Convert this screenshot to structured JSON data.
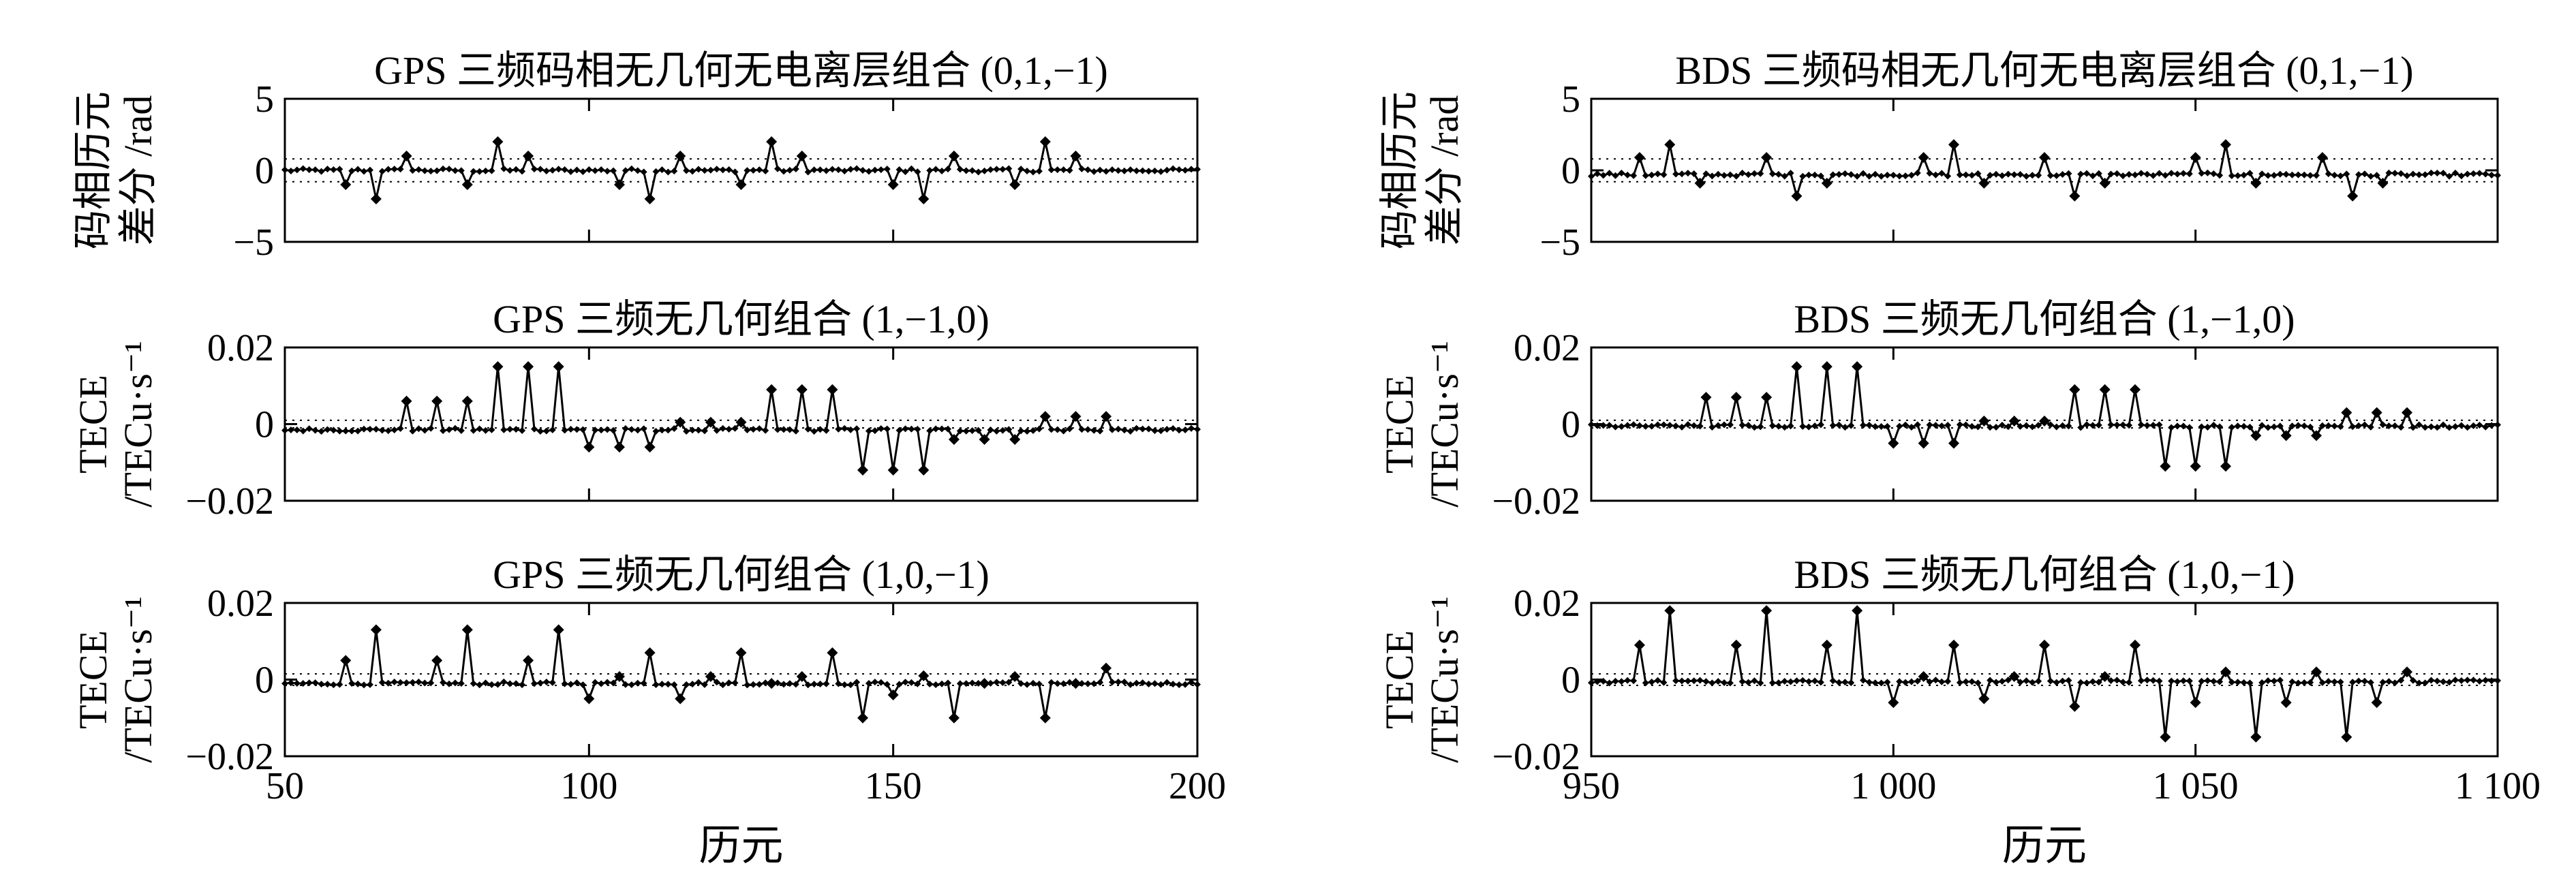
{
  "columns": [
    {
      "system": "GPS",
      "xlabel": "历元",
      "xlim": [
        50,
        200
      ],
      "xticks": [
        50,
        100,
        150,
        200
      ],
      "xtick_labels": [
        "50",
        "100",
        "150",
        "200"
      ]
    },
    {
      "system": "BDS",
      "xlabel": "历元",
      "xlim": [
        950,
        1100
      ],
      "xticks": [
        950,
        1000,
        1050,
        1100
      ],
      "xtick_labels": [
        "950",
        "1 000",
        "1 050",
        "1 100"
      ]
    }
  ],
  "row_ylabels": [
    [
      "码相历元",
      "差分 /rad"
    ],
    [
      "TECE",
      "/TECu·s⁻¹"
    ],
    [
      "TECE",
      "/TECu·s⁻¹"
    ]
  ],
  "chart_data": [
    {
      "type": "line",
      "id": "gps-code-phase",
      "title": "GPS 三频码相无几何无电离层组合 (0,1,−1)",
      "xlabel": "",
      "ylabel": "码相历元差分 /rad",
      "xlim": [
        50,
        200
      ],
      "ylim": [
        -5,
        5
      ],
      "yticks": [
        5,
        0,
        -5
      ],
      "ytick_labels": [
        "5",
        "0",
        "−5"
      ],
      "threshold": 0.8,
      "baseline": 0,
      "noise": 0.12,
      "spikes": [
        {
          "x": 60,
          "y": -1.0
        },
        {
          "x": 65,
          "y": -2.0
        },
        {
          "x": 70,
          "y": 1.0
        },
        {
          "x": 80,
          "y": -1.0
        },
        {
          "x": 85,
          "y": 2.0
        },
        {
          "x": 90,
          "y": 1.0
        },
        {
          "x": 105,
          "y": -1.0
        },
        {
          "x": 110,
          "y": -2.0
        },
        {
          "x": 115,
          "y": 1.0
        },
        {
          "x": 125,
          "y": -1.0
        },
        {
          "x": 130,
          "y": 2.0
        },
        {
          "x": 135,
          "y": 1.0
        },
        {
          "x": 150,
          "y": -1.0
        },
        {
          "x": 155,
          "y": -2.0
        },
        {
          "x": 160,
          "y": 1.0
        },
        {
          "x": 170,
          "y": -1.0
        },
        {
          "x": 175,
          "y": 2.0
        },
        {
          "x": 180,
          "y": 1.0
        }
      ],
      "grid": false
    },
    {
      "type": "line",
      "id": "gps-tece-110",
      "title": "GPS 三频无几何组合 (1,−1,0)",
      "xlabel": "",
      "ylabel": "TECE /TECu·s⁻¹",
      "xlim": [
        50,
        200
      ],
      "ylim": [
        -0.02,
        0.02
      ],
      "yticks": [
        0.02,
        0,
        -0.02
      ],
      "ytick_labels": [
        "0.02",
        "0",
        "−0.02"
      ],
      "threshold": 0.001,
      "baseline": -0.0015,
      "noise": 0.0004,
      "spikes": [
        {
          "x": 70,
          "y": 0.006
        },
        {
          "x": 75,
          "y": 0.006
        },
        {
          "x": 80,
          "y": 0.006
        },
        {
          "x": 85,
          "y": 0.015
        },
        {
          "x": 90,
          "y": 0.015
        },
        {
          "x": 95,
          "y": 0.015
        },
        {
          "x": 100,
          "y": -0.006
        },
        {
          "x": 105,
          "y": -0.006
        },
        {
          "x": 110,
          "y": -0.006
        },
        {
          "x": 115,
          "y": 0.0005
        },
        {
          "x": 120,
          "y": 0.0005
        },
        {
          "x": 125,
          "y": 0.0005
        },
        {
          "x": 130,
          "y": 0.009
        },
        {
          "x": 135,
          "y": 0.009
        },
        {
          "x": 140,
          "y": 0.009
        },
        {
          "x": 145,
          "y": -0.012
        },
        {
          "x": 150,
          "y": -0.012
        },
        {
          "x": 155,
          "y": -0.012
        },
        {
          "x": 160,
          "y": -0.004
        },
        {
          "x": 165,
          "y": -0.004
        },
        {
          "x": 170,
          "y": -0.004
        },
        {
          "x": 175,
          "y": 0.002
        },
        {
          "x": 180,
          "y": 0.002
        },
        {
          "x": 185,
          "y": 0.002
        }
      ],
      "grid": false
    },
    {
      "type": "line",
      "id": "gps-tece-101",
      "title": "GPS 三频无几何组合 (1,0,−1)",
      "xlabel": "历元",
      "ylabel": "TECE /TECu·s⁻¹",
      "xlim": [
        50,
        200
      ],
      "ylim": [
        -0.02,
        0.02
      ],
      "yticks": [
        0.02,
        0,
        -0.02
      ],
      "ytick_labels": [
        "0.02",
        "0",
        "−0.02"
      ],
      "threshold": 0.0015,
      "baseline": -0.001,
      "noise": 0.0004,
      "spikes": [
        {
          "x": 60,
          "y": 0.005
        },
        {
          "x": 65,
          "y": 0.013
        },
        {
          "x": 75,
          "y": 0.005
        },
        {
          "x": 80,
          "y": 0.013
        },
        {
          "x": 90,
          "y": 0.005
        },
        {
          "x": 95,
          "y": 0.013
        },
        {
          "x": 100,
          "y": -0.005
        },
        {
          "x": 105,
          "y": 0.0008
        },
        {
          "x": 110,
          "y": 0.007
        },
        {
          "x": 115,
          "y": -0.005
        },
        {
          "x": 120,
          "y": 0.0008
        },
        {
          "x": 125,
          "y": 0.007
        },
        {
          "x": 130,
          "y": -0.001
        },
        {
          "x": 135,
          "y": 0.0008
        },
        {
          "x": 140,
          "y": 0.007
        },
        {
          "x": 145,
          "y": -0.01
        },
        {
          "x": 150,
          "y": -0.004
        },
        {
          "x": 155,
          "y": 0.001
        },
        {
          "x": 160,
          "y": -0.01
        },
        {
          "x": 165,
          "y": -0.001
        },
        {
          "x": 170,
          "y": 0.0008
        },
        {
          "x": 175,
          "y": -0.01
        },
        {
          "x": 180,
          "y": -0.001
        },
        {
          "x": 185,
          "y": 0.003
        }
      ],
      "grid": false
    },
    {
      "type": "line",
      "id": "bds-code-phase",
      "title": "BDS 三频码相无几何无电离层组合 (0,1,−1)",
      "xlabel": "",
      "ylabel": "码相历元差分 /rad",
      "xlim": [
        950,
        1100
      ],
      "ylim": [
        -5,
        5
      ],
      "yticks": [
        5,
        0,
        -5
      ],
      "ytick_labels": [
        "5",
        "0",
        "−5"
      ],
      "threshold": 0.8,
      "baseline": -0.3,
      "noise": 0.12,
      "spikes": [
        {
          "x": 958,
          "y": 0.9
        },
        {
          "x": 963,
          "y": 1.8
        },
        {
          "x": 968,
          "y": -0.9
        },
        {
          "x": 979,
          "y": 0.9
        },
        {
          "x": 984,
          "y": -1.8
        },
        {
          "x": 989,
          "y": -0.9
        },
        {
          "x": 1005,
          "y": 0.9
        },
        {
          "x": 1010,
          "y": 1.8
        },
        {
          "x": 1015,
          "y": -0.9
        },
        {
          "x": 1025,
          "y": 0.9
        },
        {
          "x": 1030,
          "y": -1.8
        },
        {
          "x": 1035,
          "y": -0.9
        },
        {
          "x": 1050,
          "y": 0.9
        },
        {
          "x": 1055,
          "y": 1.8
        },
        {
          "x": 1060,
          "y": -0.9
        },
        {
          "x": 1071,
          "y": 0.9
        },
        {
          "x": 1076,
          "y": -1.8
        },
        {
          "x": 1081,
          "y": -0.9
        }
      ],
      "grid": false
    },
    {
      "type": "line",
      "id": "bds-tece-110",
      "title": "BDS 三频无几何组合 (1,−1,0)",
      "xlabel": "",
      "ylabel": "TECE /TECu·s⁻¹",
      "xlim": [
        950,
        1100
      ],
      "ylim": [
        -0.02,
        0.02
      ],
      "yticks": [
        0.02,
        0,
        -0.02
      ],
      "ytick_labels": [
        "0.02",
        "0",
        "−0.02"
      ],
      "threshold": 0.001,
      "baseline": -0.0005,
      "noise": 0.0004,
      "spikes": [
        {
          "x": 969,
          "y": 0.007
        },
        {
          "x": 974,
          "y": 0.007
        },
        {
          "x": 979,
          "y": 0.007
        },
        {
          "x": 984,
          "y": 0.015
        },
        {
          "x": 989,
          "y": 0.015
        },
        {
          "x": 994,
          "y": 0.015
        },
        {
          "x": 1000,
          "y": -0.005
        },
        {
          "x": 1005,
          "y": -0.005
        },
        {
          "x": 1010,
          "y": -0.005
        },
        {
          "x": 1015,
          "y": 0.0008
        },
        {
          "x": 1020,
          "y": 0.0008
        },
        {
          "x": 1025,
          "y": 0.0008
        },
        {
          "x": 1030,
          "y": 0.009
        },
        {
          "x": 1035,
          "y": 0.009
        },
        {
          "x": 1040,
          "y": 0.009
        },
        {
          "x": 1045,
          "y": -0.011
        },
        {
          "x": 1050,
          "y": -0.011
        },
        {
          "x": 1055,
          "y": -0.011
        },
        {
          "x": 1060,
          "y": -0.003
        },
        {
          "x": 1065,
          "y": -0.003
        },
        {
          "x": 1070,
          "y": -0.003
        },
        {
          "x": 1075,
          "y": 0.003
        },
        {
          "x": 1080,
          "y": 0.003
        },
        {
          "x": 1085,
          "y": 0.003
        }
      ],
      "grid": false
    },
    {
      "type": "line",
      "id": "bds-tece-101",
      "title": "BDS 三频无几何组合 (1,0,−1)",
      "xlabel": "历元",
      "ylabel": "TECE /TECu·s⁻¹",
      "xlim": [
        950,
        1100
      ],
      "ylim": [
        -0.02,
        0.02
      ],
      "yticks": [
        0.02,
        0,
        -0.02
      ],
      "ytick_labels": [
        "0.02",
        "0",
        "−0.02"
      ],
      "threshold": 0.0015,
      "baseline": -0.0005,
      "noise": 0.0004,
      "spikes": [
        {
          "x": 958,
          "y": 0.009
        },
        {
          "x": 963,
          "y": 0.018
        },
        {
          "x": 974,
          "y": 0.009
        },
        {
          "x": 979,
          "y": 0.018
        },
        {
          "x": 989,
          "y": 0.009
        },
        {
          "x": 994,
          "y": 0.018
        },
        {
          "x": 1000,
          "y": -0.006
        },
        {
          "x": 1005,
          "y": 0.0008
        },
        {
          "x": 1010,
          "y": 0.009
        },
        {
          "x": 1015,
          "y": -0.005
        },
        {
          "x": 1020,
          "y": 0.0008
        },
        {
          "x": 1025,
          "y": 0.009
        },
        {
          "x": 1030,
          "y": -0.007
        },
        {
          "x": 1035,
          "y": 0.0008
        },
        {
          "x": 1040,
          "y": 0.009
        },
        {
          "x": 1045,
          "y": -0.015
        },
        {
          "x": 1050,
          "y": -0.006
        },
        {
          "x": 1055,
          "y": 0.002
        },
        {
          "x": 1060,
          "y": -0.015
        },
        {
          "x": 1065,
          "y": -0.006
        },
        {
          "x": 1070,
          "y": 0.002
        },
        {
          "x": 1075,
          "y": -0.015
        },
        {
          "x": 1080,
          "y": -0.006
        },
        {
          "x": 1085,
          "y": 0.002
        }
      ],
      "grid": false
    }
  ]
}
